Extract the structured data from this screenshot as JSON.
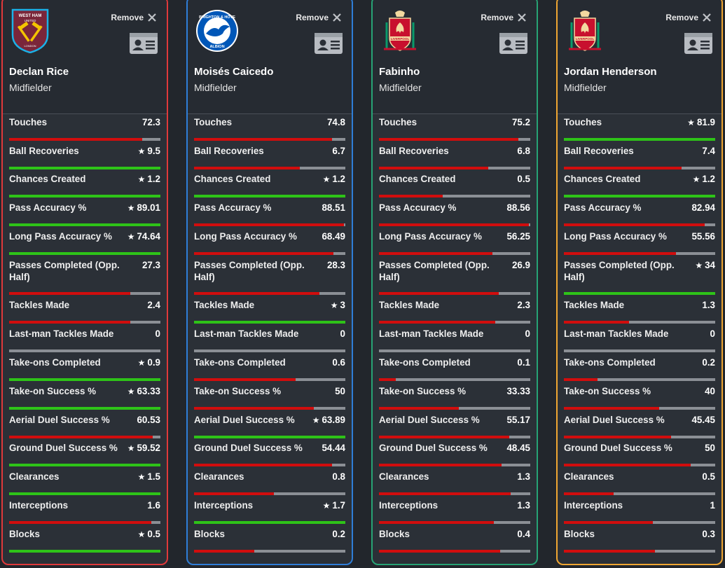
{
  "remove_label": "Remove",
  "colors": {
    "best": "#2ec318",
    "other": "#d10d0d",
    "track": "#8b8f95"
  },
  "players": [
    {
      "name": "Declan Rice",
      "position": "Midfielder",
      "club_icon": "west-ham-crest-icon",
      "crest_text": [
        "WEST HAM",
        "UNITED",
        "LONDON"
      ],
      "border": "#e0393b",
      "stats": [
        {
          "label": "Touches",
          "value": "72.3",
          "best": false,
          "fill": 0.88
        },
        {
          "label": "Ball Recoveries",
          "value": "9.5",
          "best": true,
          "fill": 1.0
        },
        {
          "label": "Chances Created",
          "value": "1.2",
          "best": true,
          "fill": 1.0
        },
        {
          "label": "Pass Accuracy %",
          "value": "89.01",
          "best": true,
          "fill": 1.0
        },
        {
          "label": "Long Pass Accuracy %",
          "value": "74.64",
          "best": true,
          "fill": 1.0
        },
        {
          "label": "Passes Completed (Opp. Half)",
          "value": "27.3",
          "best": false,
          "fill": 0.8
        },
        {
          "label": "Tackles Made",
          "value": "2.4",
          "best": false,
          "fill": 0.8
        },
        {
          "label": "Last-man Tackles Made",
          "value": "0",
          "best": false,
          "fill": 0
        },
        {
          "label": "Take-ons Completed",
          "value": "0.9",
          "best": true,
          "fill": 1.0
        },
        {
          "label": "Take-on Success %",
          "value": "63.33",
          "best": true,
          "fill": 1.0
        },
        {
          "label": "Aerial Duel Success %",
          "value": "60.53",
          "best": false,
          "fill": 0.95
        },
        {
          "label": "Ground Duel Success %",
          "value": "59.52",
          "best": true,
          "fill": 1.0
        },
        {
          "label": "Clearances",
          "value": "1.5",
          "best": true,
          "fill": 1.0
        },
        {
          "label": "Interceptions",
          "value": "1.6",
          "best": false,
          "fill": 0.94
        },
        {
          "label": "Blocks",
          "value": "0.5",
          "best": true,
          "fill": 1.0
        }
      ]
    },
    {
      "name": "Moisés Caicedo",
      "position": "Midfielder",
      "club_icon": "brighton-crest-icon",
      "crest_text": [
        "BRIGHTON & HOVE",
        "ALBION"
      ],
      "border": "#2f7ed8",
      "stats": [
        {
          "label": "Touches",
          "value": "74.8",
          "best": false,
          "fill": 0.91
        },
        {
          "label": "Ball Recoveries",
          "value": "6.7",
          "best": false,
          "fill": 0.7
        },
        {
          "label": "Chances Created",
          "value": "1.2",
          "best": true,
          "fill": 1.0
        },
        {
          "label": "Pass Accuracy %",
          "value": "88.51",
          "best": false,
          "fill": 0.99
        },
        {
          "label": "Long Pass Accuracy %",
          "value": "68.49",
          "best": false,
          "fill": 0.92
        },
        {
          "label": "Passes Completed (Opp. Half)",
          "value": "28.3",
          "best": false,
          "fill": 0.83
        },
        {
          "label": "Tackles Made",
          "value": "3",
          "best": true,
          "fill": 1.0
        },
        {
          "label": "Last-man Tackles Made",
          "value": "0",
          "best": false,
          "fill": 0
        },
        {
          "label": "Take-ons Completed",
          "value": "0.6",
          "best": false,
          "fill": 0.67
        },
        {
          "label": "Take-on Success %",
          "value": "50",
          "best": false,
          "fill": 0.79
        },
        {
          "label": "Aerial Duel Success %",
          "value": "63.89",
          "best": true,
          "fill": 1.0
        },
        {
          "label": "Ground Duel Success %",
          "value": "54.44",
          "best": false,
          "fill": 0.91
        },
        {
          "label": "Clearances",
          "value": "0.8",
          "best": false,
          "fill": 0.53
        },
        {
          "label": "Interceptions",
          "value": "1.7",
          "best": true,
          "fill": 1.0
        },
        {
          "label": "Blocks",
          "value": "0.2",
          "best": false,
          "fill": 0.4
        }
      ]
    },
    {
      "name": "Fabinho",
      "position": "Midfielder",
      "club_icon": "liverpool-crest-icon",
      "crest_text": [
        "LIVERPOOL"
      ],
      "border": "#27a375",
      "stats": [
        {
          "label": "Touches",
          "value": "75.2",
          "best": false,
          "fill": 0.92
        },
        {
          "label": "Ball Recoveries",
          "value": "6.8",
          "best": false,
          "fill": 0.72
        },
        {
          "label": "Chances Created",
          "value": "0.5",
          "best": false,
          "fill": 0.42
        },
        {
          "label": "Pass Accuracy %",
          "value": "88.56",
          "best": false,
          "fill": 0.99
        },
        {
          "label": "Long Pass Accuracy %",
          "value": "56.25",
          "best": false,
          "fill": 0.75
        },
        {
          "label": "Passes Completed (Opp. Half)",
          "value": "26.9",
          "best": false,
          "fill": 0.79
        },
        {
          "label": "Tackles Made",
          "value": "2.3",
          "best": false,
          "fill": 0.77
        },
        {
          "label": "Last-man Tackles Made",
          "value": "0",
          "best": false,
          "fill": 0
        },
        {
          "label": "Take-ons Completed",
          "value": "0.1",
          "best": false,
          "fill": 0.11
        },
        {
          "label": "Take-on Success %",
          "value": "33.33",
          "best": false,
          "fill": 0.53
        },
        {
          "label": "Aerial Duel Success %",
          "value": "55.17",
          "best": false,
          "fill": 0.86
        },
        {
          "label": "Ground Duel Success %",
          "value": "48.45",
          "best": false,
          "fill": 0.81
        },
        {
          "label": "Clearances",
          "value": "1.3",
          "best": false,
          "fill": 0.87
        },
        {
          "label": "Interceptions",
          "value": "1.3",
          "best": false,
          "fill": 0.76
        },
        {
          "label": "Blocks",
          "value": "0.4",
          "best": false,
          "fill": 0.8
        }
      ]
    },
    {
      "name": "Jordan Henderson",
      "position": "Midfielder",
      "club_icon": "liverpool-crest-icon",
      "crest_text": [
        "LIVERPOOL"
      ],
      "border": "#f0a632",
      "stats": [
        {
          "label": "Touches",
          "value": "81.9",
          "best": true,
          "fill": 1.0
        },
        {
          "label": "Ball Recoveries",
          "value": "7.4",
          "best": false,
          "fill": 0.78
        },
        {
          "label": "Chances Created",
          "value": "1.2",
          "best": true,
          "fill": 1.0
        },
        {
          "label": "Pass Accuracy %",
          "value": "82.94",
          "best": false,
          "fill": 0.93
        },
        {
          "label": "Long Pass Accuracy %",
          "value": "55.56",
          "best": false,
          "fill": 0.74
        },
        {
          "label": "Passes Completed (Opp. Half)",
          "value": "34",
          "best": true,
          "fill": 1.0
        },
        {
          "label": "Tackles Made",
          "value": "1.3",
          "best": false,
          "fill": 0.43
        },
        {
          "label": "Last-man Tackles Made",
          "value": "0",
          "best": false,
          "fill": 0
        },
        {
          "label": "Take-ons Completed",
          "value": "0.2",
          "best": false,
          "fill": 0.22
        },
        {
          "label": "Take-on Success %",
          "value": "40",
          "best": false,
          "fill": 0.63
        },
        {
          "label": "Aerial Duel Success %",
          "value": "45.45",
          "best": false,
          "fill": 0.71
        },
        {
          "label": "Ground Duel Success %",
          "value": "50",
          "best": false,
          "fill": 0.84
        },
        {
          "label": "Clearances",
          "value": "0.5",
          "best": false,
          "fill": 0.33
        },
        {
          "label": "Interceptions",
          "value": "1",
          "best": false,
          "fill": 0.59
        },
        {
          "label": "Blocks",
          "value": "0.3",
          "best": false,
          "fill": 0.6
        }
      ]
    }
  ]
}
